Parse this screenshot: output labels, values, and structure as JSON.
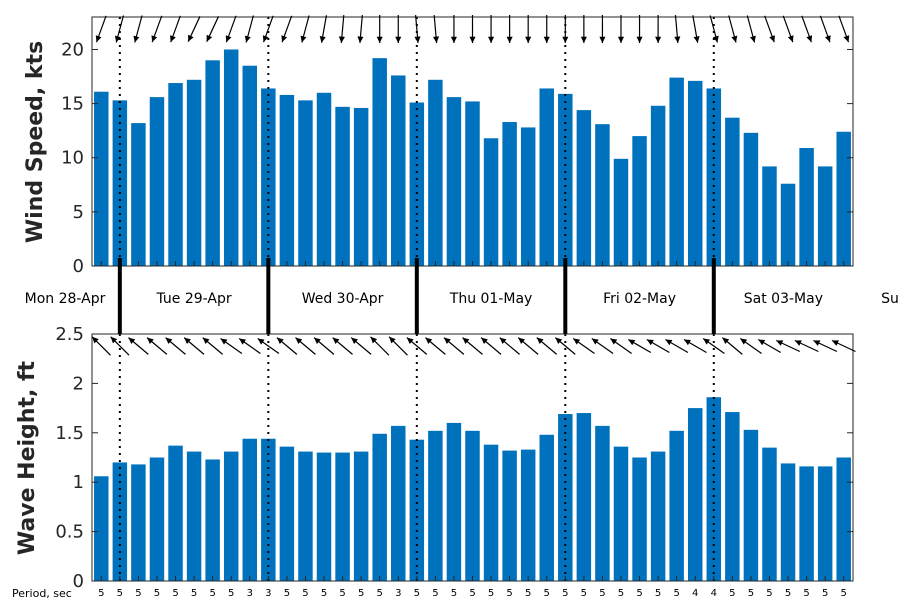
{
  "colors": {
    "bar": "#0072bd",
    "axis": "#262626",
    "arrow": "#000000"
  },
  "chart_data": [
    {
      "type": "bar",
      "ylabel": "Wind Speed, kts",
      "ylim": [
        0,
        23
      ],
      "yticks": [
        "0",
        "5",
        "10",
        "15",
        "20"
      ],
      "values": [
        16.1,
        15.3,
        13.2,
        15.6,
        16.9,
        17.2,
        19.0,
        20.0,
        18.5,
        16.4,
        15.8,
        15.3,
        16.0,
        14.7,
        14.6,
        19.2,
        17.6,
        15.1,
        17.2,
        15.6,
        15.2,
        11.8,
        13.3,
        12.8,
        16.4,
        15.9,
        14.4,
        13.1,
        9.9,
        12.0,
        14.8,
        17.4,
        17.1,
        16.4,
        13.7,
        12.3,
        9.2,
        7.6,
        10.9,
        9.2,
        12.4
      ],
      "direction_deg": [
        250,
        255,
        255,
        250,
        250,
        245,
        245,
        250,
        255,
        250,
        250,
        255,
        260,
        265,
        265,
        270,
        270,
        275,
        275,
        270,
        270,
        270,
        270,
        270,
        270,
        270,
        270,
        270,
        270,
        270,
        270,
        275,
        280,
        285,
        285,
        285,
        290,
        290,
        290,
        290,
        290
      ],
      "grid": false
    },
    {
      "type": "bar",
      "ylabel": "Wave Height, ft",
      "ylim": [
        0,
        2.5
      ],
      "yticks": [
        "0",
        "0.5",
        "1",
        "1.5",
        "2",
        "2.5"
      ],
      "values": [
        1.06,
        1.2,
        1.18,
        1.25,
        1.37,
        1.31,
        1.23,
        1.31,
        1.44,
        1.44,
        1.36,
        1.31,
        1.3,
        1.3,
        1.31,
        1.49,
        1.57,
        1.43,
        1.52,
        1.6,
        1.52,
        1.38,
        1.32,
        1.33,
        1.48,
        1.69,
        1.7,
        1.57,
        1.36,
        1.25,
        1.31,
        1.52,
        1.75,
        1.86,
        1.71,
        1.53,
        1.35,
        1.19,
        1.16,
        1.16,
        1.25
      ],
      "direction_deg": [
        135,
        135,
        140,
        140,
        140,
        140,
        140,
        145,
        145,
        145,
        140,
        140,
        140,
        140,
        140,
        135,
        135,
        140,
        140,
        140,
        140,
        140,
        140,
        140,
        140,
        140,
        145,
        145,
        145,
        150,
        150,
        150,
        150,
        145,
        140,
        145,
        150,
        155,
        155,
        155,
        155
      ],
      "periods": [
        "5",
        "5",
        "5",
        "5",
        "5",
        "5",
        "5",
        "5",
        "3",
        "3",
        "5",
        "5",
        "5",
        "5",
        "5",
        "5",
        "3",
        "5",
        "5",
        "5",
        "5",
        "5",
        "5",
        "5",
        "5",
        "5",
        "5",
        "5",
        "5",
        "5",
        "5",
        "5",
        "4",
        "4",
        "5",
        "5",
        "5",
        "5",
        "5",
        "5",
        "5"
      ],
      "period_label": "Period, sec",
      "grid": false
    }
  ],
  "days": [
    "Mon 28-Apr",
    "Tue 29-Apr",
    "Wed 30-Apr",
    "Thu 01-May",
    "Fri 02-May",
    "Sat 03-May",
    "Su"
  ]
}
